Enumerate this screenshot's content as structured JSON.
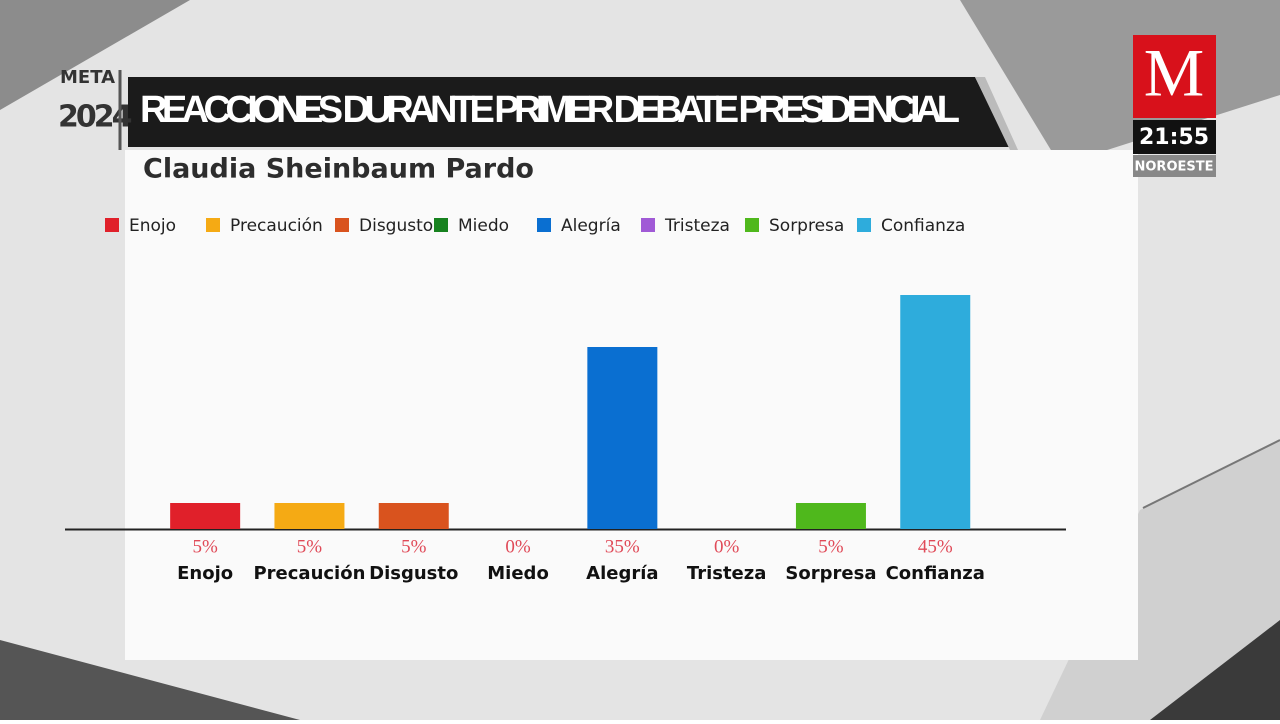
{
  "program": "META",
  "program_year": "2024",
  "channel_logo": "M",
  "clock": "21:55",
  "region": "NOROESTE",
  "chart_data": {
    "type": "bar",
    "title": "REACCIONES DURANTE PRIMER DEBATE PRESIDENCIAL",
    "subtitle": "Claudia Sheinbaum Pardo",
    "categories": [
      "Enojo",
      "Precaución",
      "Disgusto",
      "Miedo",
      "Alegría",
      "Tristeza",
      "Sorpresa",
      "Confianza"
    ],
    "values": [
      5,
      5,
      5,
      0,
      35,
      0,
      5,
      45
    ],
    "value_labels": [
      "5%",
      "5%",
      "5%",
      "0%",
      "35%",
      "0%",
      "5%",
      "45%"
    ],
    "colors": [
      "#e0202a",
      "#f5aa14",
      "#d9531e",
      "#17821f",
      "#0a6fd1",
      "#a05ad6",
      "#4fb81c",
      "#2eacdc"
    ]
  }
}
